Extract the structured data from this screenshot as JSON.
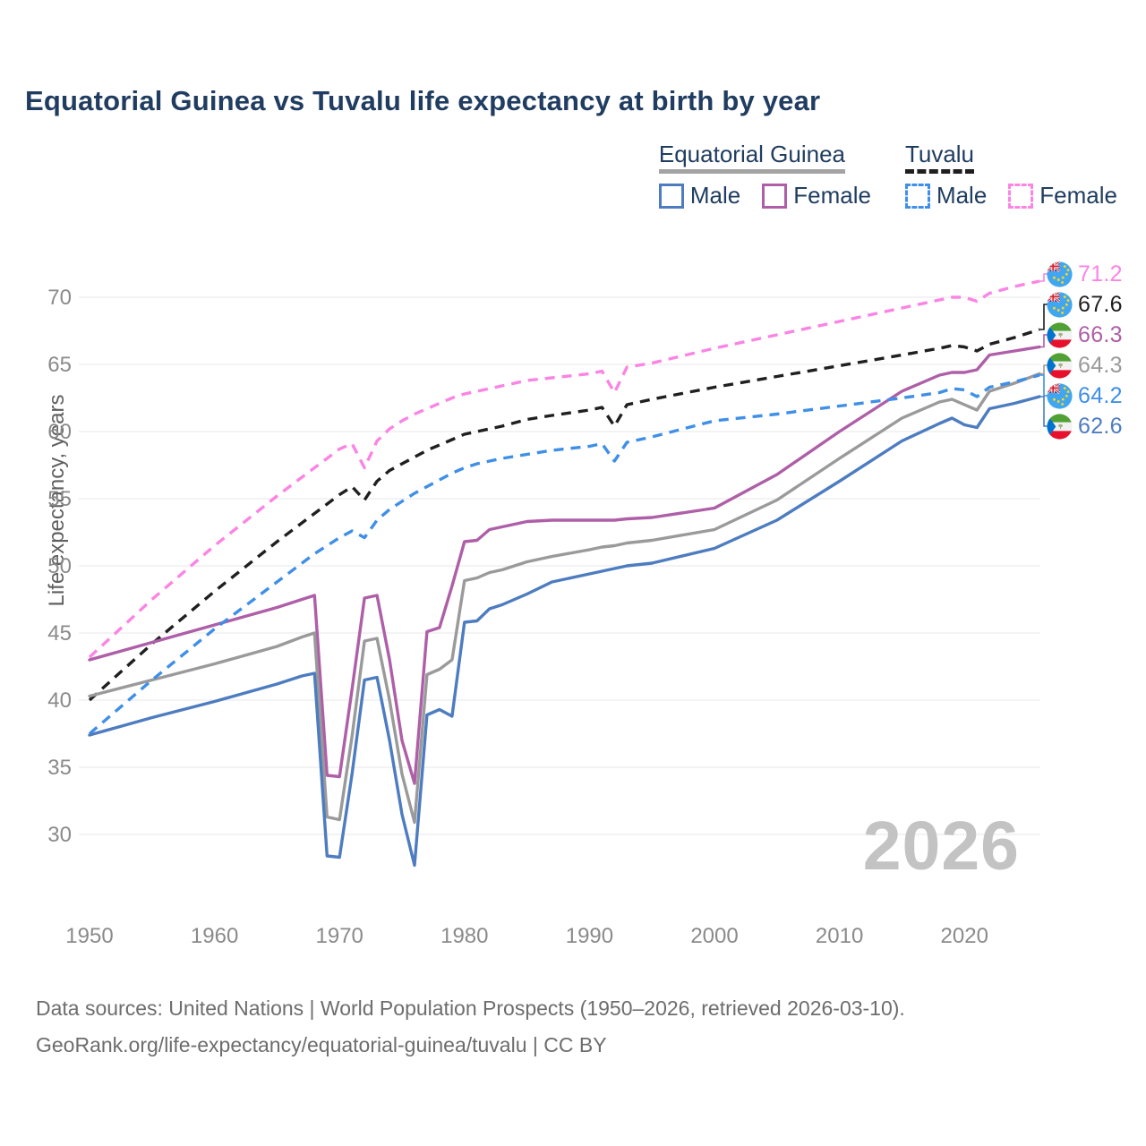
{
  "title": "Equatorial Guinea vs Tuvalu life expectancy at birth by year",
  "watermark": "2026",
  "footer": {
    "line1": "Data sources: United Nations | World Population Prospects (1950–2026, retrieved 2026-03-10).",
    "line2": "GeoRank.org/life-expectancy/equatorial-guinea/tuvalu | CC BY"
  },
  "legend": {
    "groups": [
      {
        "name": "Equatorial Guinea",
        "underline_style": "solid",
        "underline_color": "#a3a3a3",
        "items": [
          {
            "label": "Male",
            "color": "#4d7cc0",
            "dashed": false
          },
          {
            "label": "Female",
            "color": "#ae5fa7",
            "dashed": false
          }
        ]
      },
      {
        "name": "Tuvalu",
        "underline_style": "dashed",
        "underline_color": "#1f1f1f",
        "items": [
          {
            "label": "Male",
            "color": "#3f8fe8",
            "dashed": true
          },
          {
            "label": "Female",
            "color": "#fb84e4",
            "dashed": true
          }
        ]
      }
    ]
  },
  "chart_data": {
    "type": "line",
    "title": "Equatorial Guinea vs Tuvalu life expectancy at birth by year",
    "xlabel": "",
    "ylabel": "Life expectancy, years",
    "xlim": [
      1950,
      2026
    ],
    "ylim": [
      27,
      72.5
    ],
    "grid": "horizontal",
    "x_ticks": [
      1950,
      1960,
      1970,
      1980,
      1990,
      2000,
      2010,
      2020
    ],
    "y_ticks": [
      30,
      35,
      40,
      45,
      50,
      55,
      60,
      65,
      70
    ],
    "x": [
      1950,
      1955,
      1960,
      1965,
      1967,
      1968,
      1969,
      1970,
      1971,
      1972,
      1973,
      1974,
      1975,
      1976,
      1977,
      1978,
      1979,
      1980,
      1981,
      1982,
      1983,
      1985,
      1987,
      1990,
      1991,
      1992,
      1993,
      1995,
      2000,
      2005,
      2010,
      2015,
      2018,
      2019,
      2020,
      2021,
      2022,
      2024,
      2026
    ],
    "series": [
      {
        "id": "tuvalu-female",
        "name": "Tuvalu Female",
        "country": "Tuvalu",
        "sex": "Female",
        "color": "#fb84e4",
        "dashed": true,
        "flag": "tuvalu",
        "end_label": "71.2",
        "values": [
          43.2,
          47.5,
          51.5,
          55.2,
          56.6,
          57.3,
          58.0,
          58.7,
          59.1,
          57.3,
          59.3,
          60.2,
          60.8,
          61.3,
          61.7,
          62.1,
          62.5,
          62.8,
          63.0,
          63.2,
          63.4,
          63.8,
          64.0,
          64.3,
          64.5,
          62.9,
          64.8,
          65.1,
          66.2,
          67.2,
          68.2,
          69.2,
          69.8,
          70.0,
          70.0,
          69.7,
          70.3,
          70.8,
          71.2
        ]
      },
      {
        "id": "tuvalu-all",
        "name": "Tuvalu",
        "country": "Tuvalu",
        "sex": "All",
        "color": "#1f1f1f",
        "dashed": true,
        "flag": "tuvalu",
        "end_label": "67.6",
        "values": [
          40.0,
          44.2,
          48.1,
          51.8,
          53.2,
          53.9,
          54.6,
          55.3,
          55.9,
          54.9,
          56.3,
          57.1,
          57.6,
          58.1,
          58.6,
          59.0,
          59.4,
          59.8,
          60.0,
          60.2,
          60.4,
          60.9,
          61.2,
          61.6,
          61.8,
          60.4,
          62.0,
          62.4,
          63.3,
          64.1,
          64.9,
          65.7,
          66.2,
          66.4,
          66.3,
          66.0,
          66.5,
          67.0,
          67.6
        ]
      },
      {
        "id": "equatorial-guinea-female",
        "name": "Equatorial Guinea Female",
        "country": "Equatorial Guinea",
        "sex": "Female",
        "color": "#ae5fa7",
        "dashed": false,
        "flag": "equatorial-guinea",
        "end_label": "66.3",
        "values": [
          43.0,
          44.3,
          45.6,
          46.9,
          47.5,
          47.8,
          34.4,
          34.3,
          40.8,
          47.6,
          47.8,
          43.0,
          37.0,
          33.8,
          45.1,
          45.4,
          48.5,
          51.8,
          51.9,
          52.7,
          52.9,
          53.3,
          53.4,
          53.4,
          53.4,
          53.4,
          53.5,
          53.6,
          54.3,
          56.8,
          60.0,
          63.0,
          64.2,
          64.4,
          64.4,
          64.6,
          65.7,
          66.0,
          66.3
        ]
      },
      {
        "id": "equatorial-guinea-all",
        "name": "Equatorial Guinea",
        "country": "Equatorial Guinea",
        "sex": "All",
        "color": "#9a9a9a",
        "dashed": false,
        "flag": "equatorial-guinea",
        "end_label": "64.3",
        "values": [
          40.3,
          41.5,
          42.7,
          44.0,
          44.7,
          45.0,
          31.3,
          31.1,
          37.3,
          44.4,
          44.6,
          40.0,
          34.5,
          30.9,
          41.9,
          42.3,
          43.0,
          48.9,
          49.1,
          49.5,
          49.7,
          50.3,
          50.7,
          51.2,
          51.4,
          51.5,
          51.7,
          51.9,
          52.7,
          54.9,
          58.0,
          61.0,
          62.2,
          62.4,
          62.0,
          61.6,
          63.0,
          63.6,
          64.3
        ]
      },
      {
        "id": "tuvalu-male",
        "name": "Tuvalu Male",
        "country": "Tuvalu",
        "sex": "Male",
        "color": "#3f8fe8",
        "dashed": true,
        "flag": "tuvalu",
        "end_label": "64.2",
        "values": [
          37.5,
          41.5,
          45.3,
          48.8,
          50.2,
          50.9,
          51.5,
          52.1,
          52.6,
          52.1,
          53.4,
          54.2,
          54.8,
          55.4,
          55.9,
          56.4,
          56.9,
          57.3,
          57.6,
          57.8,
          58.0,
          58.3,
          58.6,
          58.9,
          59.1,
          57.8,
          59.2,
          59.6,
          60.8,
          61.3,
          61.9,
          62.5,
          62.9,
          63.2,
          63.1,
          62.6,
          63.3,
          63.7,
          64.2
        ]
      },
      {
        "id": "equatorial-guinea-male",
        "name": "Equatorial Guinea Male",
        "country": "Equatorial Guinea",
        "sex": "Male",
        "color": "#4d7cc0",
        "dashed": false,
        "flag": "equatorial-guinea",
        "end_label": "62.6",
        "values": [
          37.4,
          38.7,
          39.9,
          41.2,
          41.8,
          42.0,
          28.4,
          28.3,
          34.5,
          41.5,
          41.7,
          37.0,
          31.5,
          27.7,
          38.9,
          39.3,
          38.8,
          45.8,
          45.9,
          46.8,
          47.1,
          47.9,
          48.8,
          49.4,
          49.6,
          49.8,
          50.0,
          50.2,
          51.3,
          53.4,
          56.3,
          59.3,
          60.6,
          61.0,
          60.5,
          60.3,
          61.7,
          62.1,
          62.6
        ]
      }
    ]
  },
  "colors": {
    "title_text": "#203d61",
    "tick_text": "#8a8a8a",
    "grid": "#ececec",
    "watermark": "#c3c3c3",
    "footer_text": "#6d6d6d"
  }
}
